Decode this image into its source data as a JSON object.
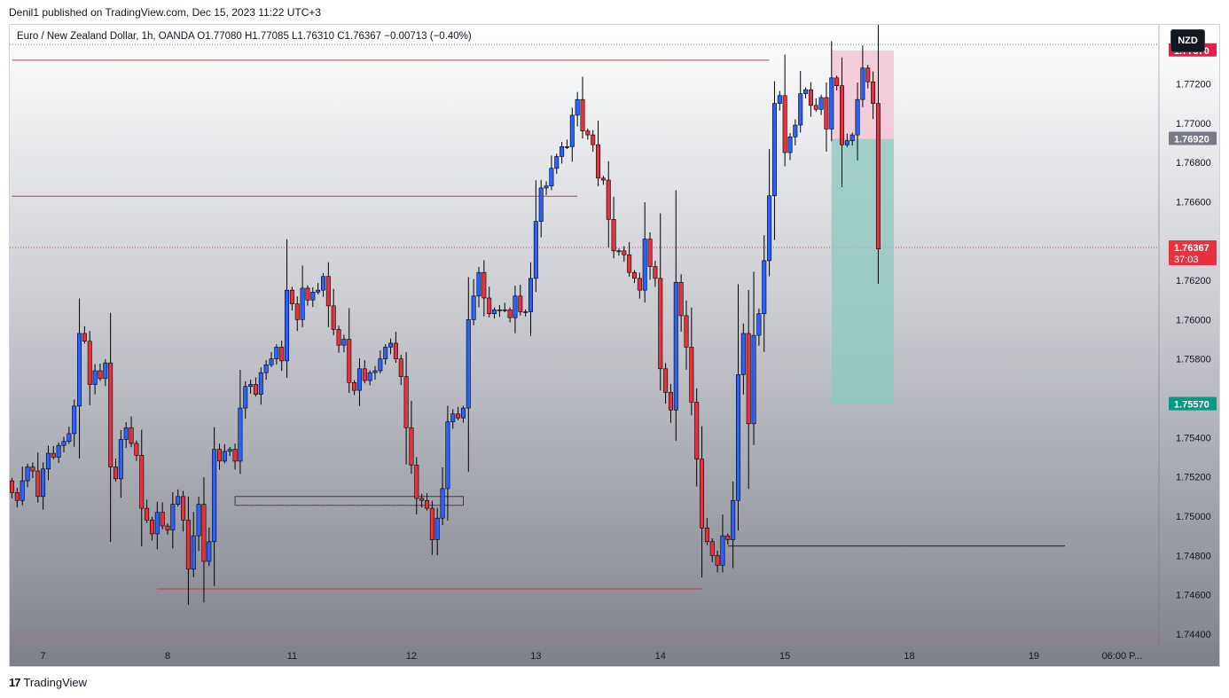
{
  "header": {
    "published": "Denil1 published on TradingView.com, Dec 15, 2023 11:22 UTC+3",
    "symbol_line": "Euro / New Zealand Dollar, 1h, OANDA  O1.77080  H1.77085  L1.76310  C1.76367  −0.00713 (−0.40%)"
  },
  "currency_button": "NZD",
  "footer": {
    "logo_text": "TradingView",
    "logo_icon": "tradingview-logo-icon"
  },
  "colors": {
    "up": "#2962ff",
    "down": "#e8313e",
    "stop_zone": "#f3c6d6",
    "target_zone": "#8fc8bf",
    "level_line": "#e0303a"
  },
  "chart_data": {
    "type": "candlestick",
    "title": "Euro / New Zealand Dollar, 1h, OANDA",
    "ylim": [
      1.7435,
      1.775
    ],
    "x_tick_labels": [
      {
        "i": 6,
        "label": "7"
      },
      {
        "i": 30,
        "label": "8"
      },
      {
        "i": 54,
        "label": "11"
      },
      {
        "i": 77,
        "label": "12"
      },
      {
        "i": 101,
        "label": "13"
      },
      {
        "i": 125,
        "label": "14"
      },
      {
        "i": 149,
        "label": "15"
      },
      {
        "i": 173,
        "label": "18"
      },
      {
        "i": 197,
        "label": "19"
      },
      {
        "i": 214,
        "label": "06:00 P..."
      }
    ],
    "y_ticks": [
      "1.74400",
      "1.74600",
      "1.74800",
      "1.75000",
      "1.75200",
      "1.75400",
      "1.75800",
      "1.76000",
      "1.76200",
      "1.76600",
      "1.76800",
      "1.77000",
      "1.77200"
    ],
    "price_badges": [
      {
        "value": "1.77370",
        "kind": "stop"
      },
      {
        "value": "1.76920",
        "kind": "entry"
      },
      {
        "value": "1.76367",
        "kind": "last",
        "countdown": "37:03"
      },
      {
        "value": "1.75570",
        "kind": "target"
      }
    ],
    "closes": [
      1.7512,
      1.7508,
      1.7518,
      1.7525,
      1.7523,
      1.751,
      1.7524,
      1.7532,
      1.753,
      1.7536,
      1.7538,
      1.7542,
      1.7556,
      1.7593,
      1.7589,
      1.7567,
      1.7574,
      1.757,
      1.7578,
      1.7525,
      1.7519,
      1.7539,
      1.7545,
      1.7537,
      1.7531,
      1.7504,
      1.7498,
      1.7491,
      1.7502,
      1.7495,
      1.7493,
      1.7506,
      1.751,
      1.7498,
      1.7473,
      1.749,
      1.7506,
      1.7477,
      1.7487,
      1.7534,
      1.7528,
      1.7533,
      1.7534,
      1.7528,
      1.7555,
      1.7566,
      1.7567,
      1.7562,
      1.7573,
      1.7577,
      1.758,
      1.7586,
      1.7579,
      1.7615,
      1.7608,
      1.76,
      1.7616,
      1.761,
      1.7614,
      1.7615,
      1.7622,
      1.7607,
      1.7595,
      1.7587,
      1.759,
      1.7568,
      1.7564,
      1.7575,
      1.7569,
      1.7573,
      1.7574,
      1.758,
      1.7586,
      1.7588,
      1.758,
      1.7571,
      1.7545,
      1.7526,
      1.7509,
      1.7508,
      1.7504,
      1.7488,
      1.7499,
      1.7514,
      1.7548,
      1.7552,
      1.755,
      1.7555,
      1.76,
      1.7612,
      1.7624,
      1.7611,
      1.7603,
      1.7605,
      1.7605,
      1.7605,
      1.7601,
      1.7612,
      1.7604,
      1.7604,
      1.7621,
      1.765,
      1.7667,
      1.7668,
      1.7677,
      1.7683,
      1.7688,
      1.7688,
      1.7704,
      1.7712,
      1.7696,
      1.7694,
      1.7689,
      1.7672,
      1.7671,
      1.7651,
      1.7635,
      1.7635,
      1.7633,
      1.7624,
      1.7621,
      1.7615,
      1.7641,
      1.7627,
      1.7621,
      1.7575,
      1.7563,
      1.7554,
      1.7619,
      1.7602,
      1.7586,
      1.7558,
      1.7529,
      1.7494,
      1.7487,
      1.748,
      1.7475,
      1.749,
      1.7488,
      1.7508,
      1.7572,
      1.7593,
      1.7547,
      1.7592,
      1.7603,
      1.763,
      1.7663,
      1.771,
      1.7714,
      1.7685,
      1.7693,
      1.7699,
      1.7715,
      1.7717,
      1.7709,
      1.7707,
      1.7713,
      1.7697,
      1.7723,
      1.7719,
      1.7689,
      1.7691,
      1.7694,
      1.7712,
      1.7728,
      1.7721,
      1.771,
      1.7636
    ],
    "first_open": 1.7518,
    "annotations": {
      "horizontal_levels": [
        {
          "price": 1.7732,
          "from_index": 0,
          "to_index": 146
        },
        {
          "price": 1.76628,
          "from_index": 0,
          "to_index": 109
        },
        {
          "price": 1.7463,
          "from_index": 28,
          "to_index": 133
        }
      ],
      "support_box": {
        "top": 1.751,
        "bottom": 1.75055,
        "from_index": 43,
        "to_index": 87
      },
      "flat_line": {
        "price": 1.74848,
        "from_index": 138,
        "to_index": 203
      },
      "position": {
        "from_index": 158,
        "to_index": 170,
        "stop": 1.7737,
        "entry": 1.7692,
        "target": 1.7557
      },
      "last_price_line": 1.76367,
      "top_dotted_line": 1.774
    }
  }
}
